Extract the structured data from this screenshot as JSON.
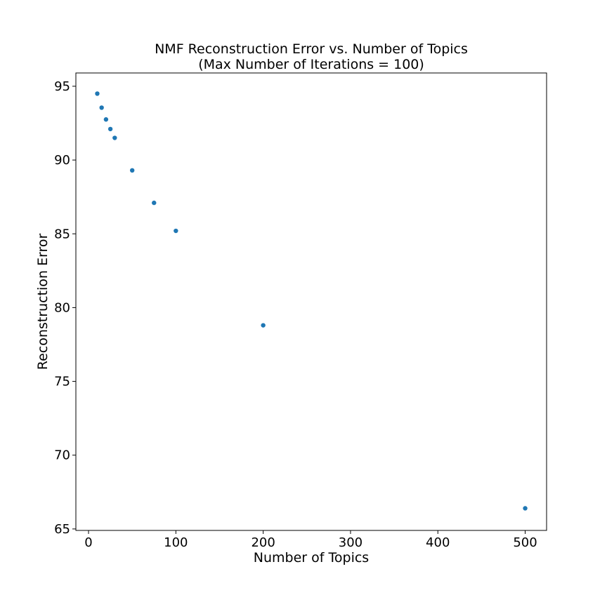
{
  "chart_data": {
    "type": "scatter",
    "title": "NMF Reconstruction Error vs. Number of Topics",
    "subtitle": "(Max Number of Iterations = 100)",
    "xlabel": "Number of Topics",
    "ylabel": "Reconstruction Error",
    "xlim": [
      -14.5,
      524.5
    ],
    "ylim": [
      64.9,
      95.9
    ],
    "xticks": [
      0,
      100,
      200,
      300,
      400,
      500
    ],
    "yticks": [
      65,
      70,
      75,
      80,
      85,
      90,
      95
    ],
    "xtick_labels": [
      "0",
      "100",
      "200",
      "300",
      "400",
      "500"
    ],
    "ytick_labels": [
      "65",
      "70",
      "75",
      "80",
      "85",
      "90",
      "95"
    ],
    "grid": false,
    "marker_color": "#1f77b4",
    "series": [
      {
        "x": [
          10,
          15,
          20,
          25,
          30,
          50,
          75,
          100,
          200,
          500
        ],
        "y": [
          94.5,
          93.55,
          92.75,
          92.1,
          91.5,
          89.3,
          87.1,
          85.2,
          78.8,
          66.4
        ]
      }
    ]
  }
}
